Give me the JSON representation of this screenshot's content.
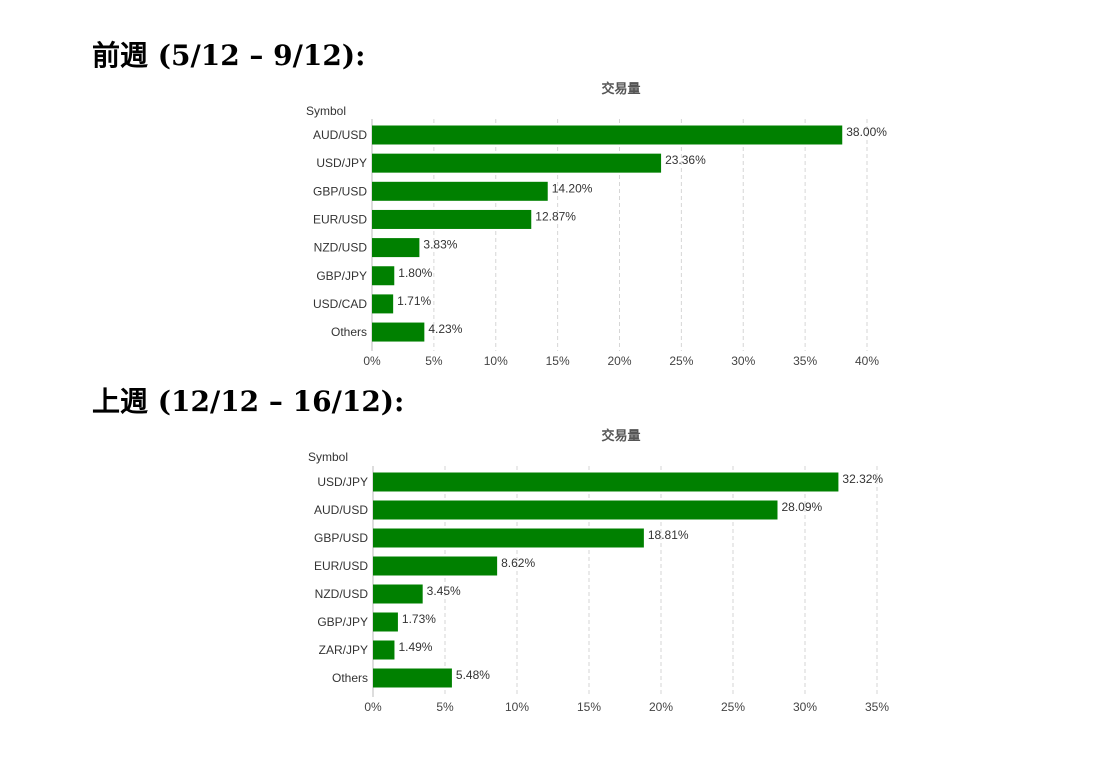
{
  "sections": [
    {
      "title": "前週 (5/12 – 9/12):"
    },
    {
      "title": "上週 (12/12 – 16/12):"
    }
  ],
  "chart_data": [
    {
      "type": "bar",
      "orientation": "horizontal",
      "title": "交易量",
      "ylabel": "Symbol",
      "xlabel": "",
      "categories": [
        "AUD/USD",
        "USD/JPY",
        "GBP/USD",
        "EUR/USD",
        "NZD/USD",
        "GBP/JPY",
        "USD/CAD",
        "Others"
      ],
      "values": [
        38.0,
        23.36,
        14.2,
        12.87,
        3.83,
        1.8,
        1.71,
        4.23
      ],
      "data_labels": [
        "38.00%",
        "23.36%",
        "14.20%",
        "12.87%",
        "3.83%",
        "1.80%",
        "1.71%",
        "4.23%"
      ],
      "xlim": [
        0,
        40
      ],
      "x_ticks": [
        0,
        5,
        10,
        15,
        20,
        25,
        30,
        35,
        40
      ],
      "x_tick_labels": [
        "0%",
        "5%",
        "10%",
        "15%",
        "20%",
        "25%",
        "30%",
        "35%",
        "40%"
      ],
      "grid": true,
      "bar_color": "#008000"
    },
    {
      "type": "bar",
      "orientation": "horizontal",
      "title": "交易量",
      "ylabel": "Symbol",
      "xlabel": "",
      "categories": [
        "USD/JPY",
        "AUD/USD",
        "GBP/USD",
        "EUR/USD",
        "NZD/USD",
        "GBP/JPY",
        "ZAR/JPY",
        "Others"
      ],
      "values": [
        32.32,
        28.09,
        18.81,
        8.62,
        3.45,
        1.73,
        1.49,
        5.48
      ],
      "data_labels": [
        "32.32%",
        "28.09%",
        "18.81%",
        "8.62%",
        "3.45%",
        "1.73%",
        "1.49%",
        "5.48%"
      ],
      "xlim": [
        0,
        35
      ],
      "x_ticks": [
        0,
        5,
        10,
        15,
        20,
        25,
        30,
        35
      ],
      "x_tick_labels": [
        "0%",
        "5%",
        "10%",
        "15%",
        "20%",
        "25%",
        "30%",
        "35%"
      ],
      "grid": true,
      "bar_color": "#008000"
    }
  ]
}
